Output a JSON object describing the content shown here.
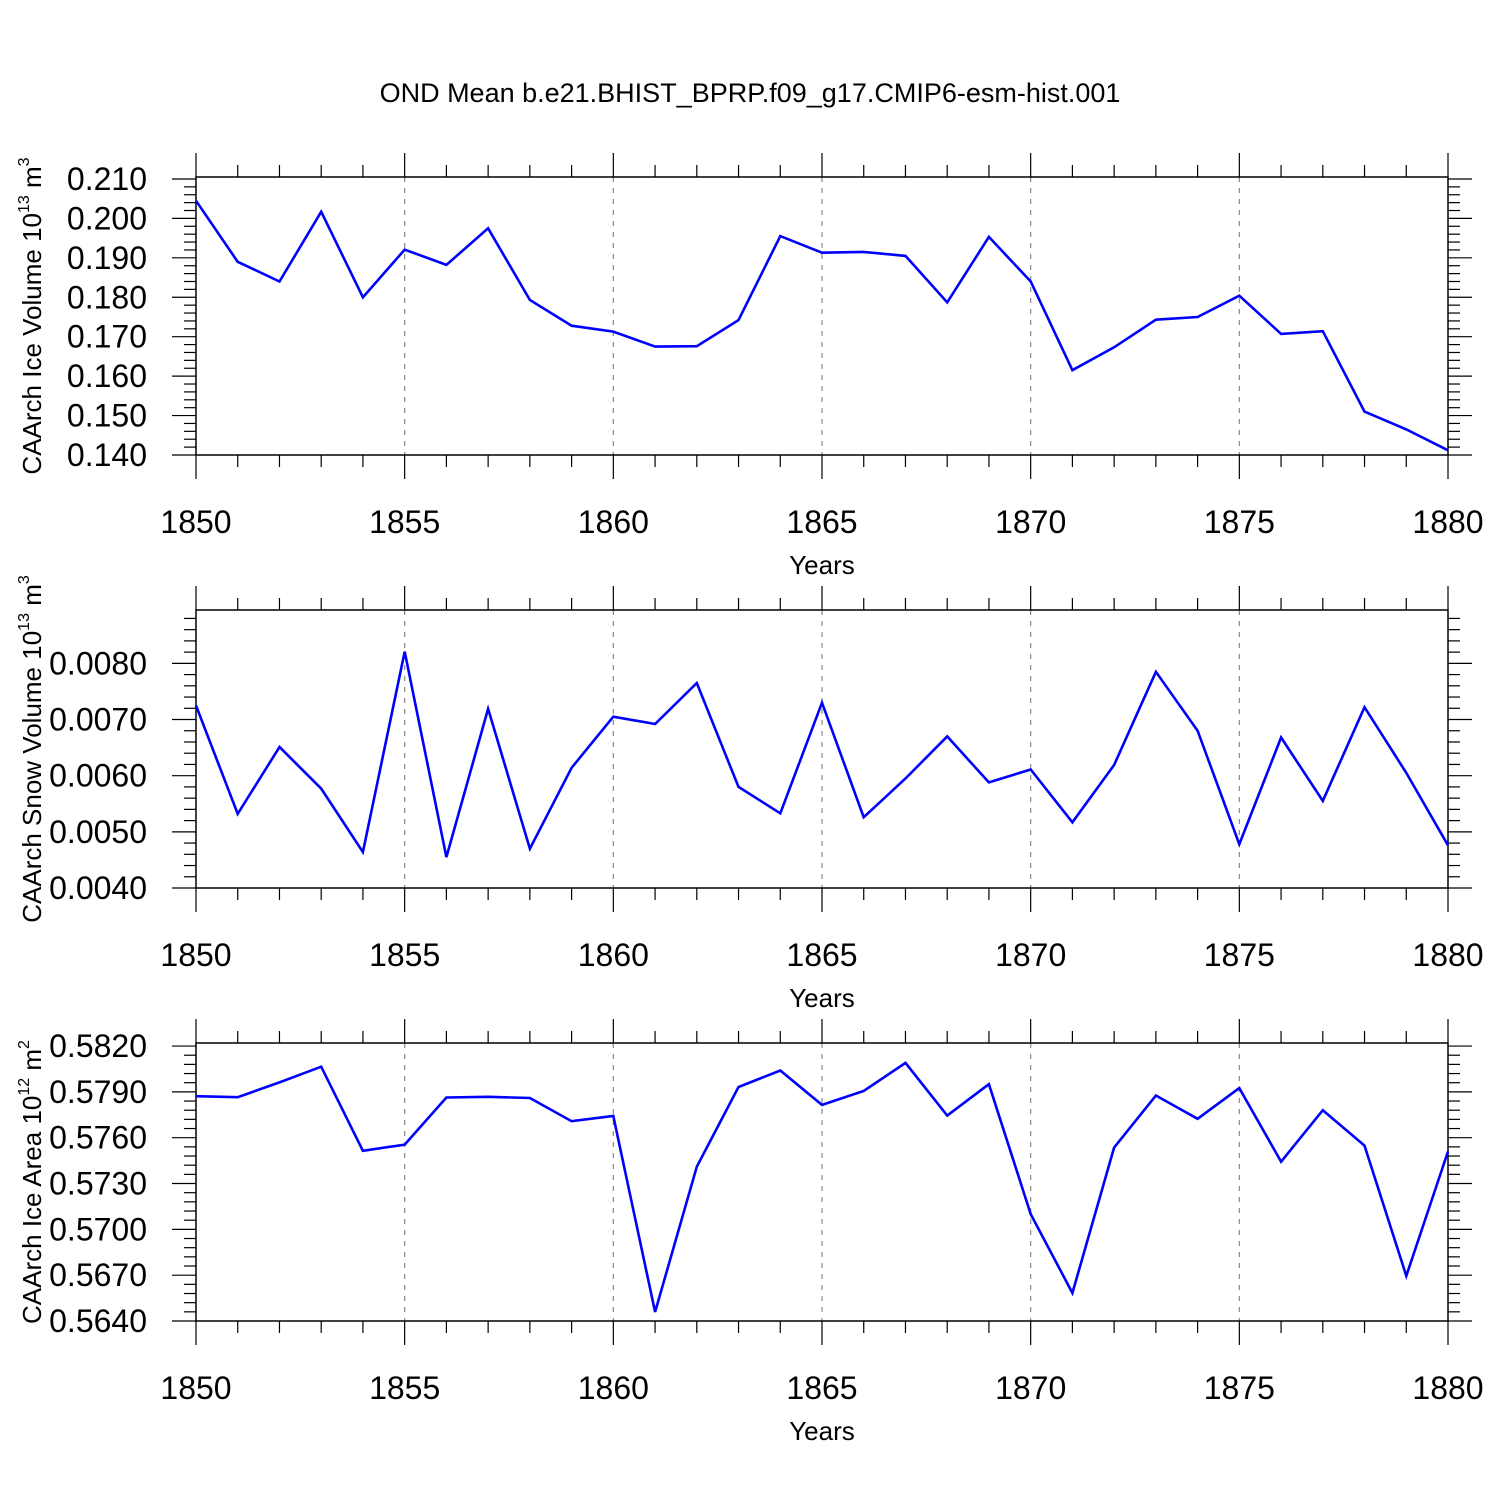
{
  "title": "OND Mean b.e21.BHIST_BPRP.f09_g17.CMIP6-esm-hist.001",
  "chart_data": [
    {
      "type": "line",
      "ylabel": {
        "text": "CAArch Ice Volume 10",
        "exp": "13",
        "unit": " m",
        "unit_exp": "3"
      },
      "xlabel": "Years",
      "xlim": [
        1850,
        1880
      ],
      "ylim": [
        0.14,
        0.2105
      ],
      "x_ticks": [
        "1850",
        "1855",
        "1860",
        "1865",
        "1870",
        "1875",
        "1880"
      ],
      "y_ticks": [
        "0.140",
        "0.150",
        "0.160",
        "0.170",
        "0.180",
        "0.190",
        "0.200",
        "0.210"
      ],
      "grid": "vertical dashed at major x ticks",
      "line_color": "#0000ff",
      "x": [
        1850,
        1851,
        1852,
        1853,
        1854,
        1855,
        1856,
        1857,
        1858,
        1859,
        1860,
        1861,
        1862,
        1863,
        1864,
        1865,
        1866,
        1867,
        1868,
        1869,
        1870,
        1871,
        1872,
        1873,
        1874,
        1875,
        1876,
        1877,
        1878,
        1879,
        1880
      ],
      "y": [
        0.2045,
        0.189,
        0.184,
        0.2017,
        0.18,
        0.1921,
        0.1882,
        0.1975,
        0.1793,
        0.1728,
        0.1713,
        0.1675,
        0.1676,
        0.1742,
        0.1955,
        0.1913,
        0.1915,
        0.1905,
        0.1787,
        0.1953,
        0.184,
        0.1615,
        0.1673,
        0.1743,
        0.175,
        0.1804,
        0.1707,
        0.1714,
        0.151,
        0.1465,
        0.1412
      ]
    },
    {
      "type": "line",
      "ylabel": {
        "text": "CAArch Snow Volume 10",
        "exp": "13",
        "unit": " m",
        "unit_exp": "3"
      },
      "xlabel": "Years",
      "xlim": [
        1850,
        1880
      ],
      "ylim": [
        0.004,
        0.00895
      ],
      "x_ticks": [
        "1850",
        "1855",
        "1860",
        "1865",
        "1870",
        "1875",
        "1880"
      ],
      "y_ticks": [
        "0.0040",
        "0.0050",
        "0.0060",
        "0.0070",
        "0.0080"
      ],
      "grid": "vertical dashed at major x ticks",
      "line_color": "#0000ff",
      "x": [
        1850,
        1851,
        1852,
        1853,
        1854,
        1855,
        1856,
        1857,
        1858,
        1859,
        1860,
        1861,
        1862,
        1863,
        1864,
        1865,
        1866,
        1867,
        1868,
        1869,
        1870,
        1871,
        1872,
        1873,
        1874,
        1875,
        1876,
        1877,
        1878,
        1879,
        1880
      ],
      "y": [
        0.00725,
        0.00532,
        0.00651,
        0.00577,
        0.00464,
        0.00821,
        0.00455,
        0.00719,
        0.0047,
        0.00614,
        0.00705,
        0.00692,
        0.00765,
        0.0058,
        0.00533,
        0.0073,
        0.00526,
        0.00595,
        0.0067,
        0.00588,
        0.00611,
        0.00517,
        0.00619,
        0.00785,
        0.0068,
        0.00478,
        0.00668,
        0.00555,
        0.00722,
        0.00605,
        0.00476
      ]
    },
    {
      "type": "line",
      "ylabel": {
        "text": "CAArch Ice Area 10",
        "exp": "12",
        "unit": " m",
        "unit_exp": "2"
      },
      "xlabel": "Years",
      "xlim": [
        1850,
        1880
      ],
      "ylim": [
        0.564,
        0.5822
      ],
      "x_ticks": [
        "1850",
        "1855",
        "1860",
        "1865",
        "1870",
        "1875",
        "1880"
      ],
      "y_ticks": [
        "0.5640",
        "0.5670",
        "0.5700",
        "0.5730",
        "0.5760",
        "0.5790",
        "0.5820"
      ],
      "grid": "vertical dashed at major x ticks",
      "line_color": "#0000ff",
      "x": [
        1850,
        1851,
        1852,
        1853,
        1854,
        1855,
        1856,
        1857,
        1858,
        1859,
        1860,
        1861,
        1862,
        1863,
        1864,
        1865,
        1866,
        1867,
        1868,
        1869,
        1870,
        1871,
        1872,
        1873,
        1874,
        1875,
        1876,
        1877,
        1878,
        1879,
        1880
      ],
      "y": [
        0.57872,
        0.57865,
        0.57962,
        0.58065,
        0.57514,
        0.57555,
        0.57863,
        0.57868,
        0.5786,
        0.57708,
        0.57742,
        0.56459,
        0.5741,
        0.57932,
        0.5804,
        0.57815,
        0.57906,
        0.5809,
        0.57745,
        0.5795,
        0.571,
        0.56583,
        0.57535,
        0.57876,
        0.57724,
        0.57925,
        0.57443,
        0.5778,
        0.57548,
        0.56695,
        0.5751
      ]
    }
  ]
}
